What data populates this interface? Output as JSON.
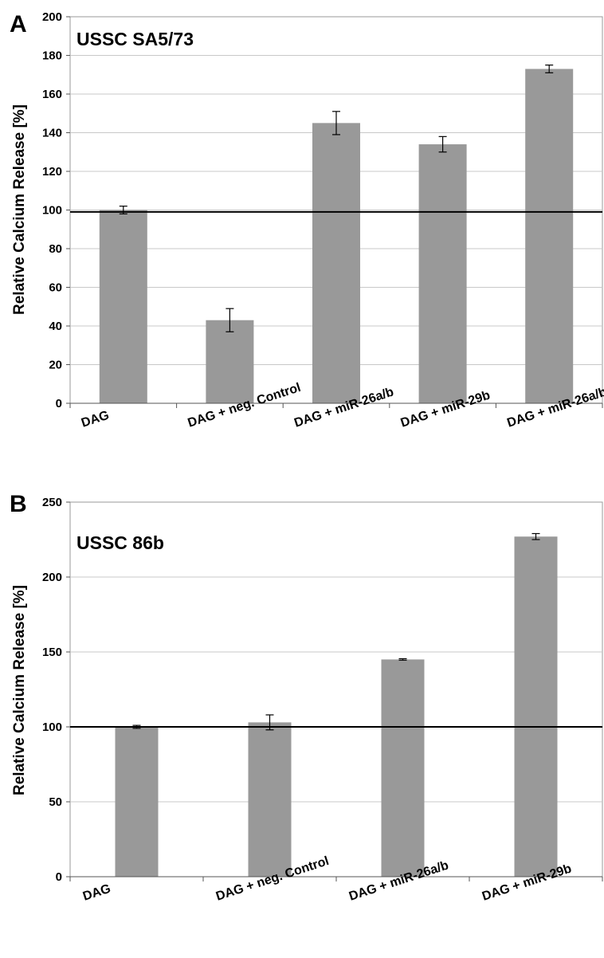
{
  "chart_data": [
    {
      "type": "bar",
      "panel": "A",
      "title": "USSC SA5/73",
      "ylabel": "Relative Calcium Release [%]",
      "xlabel": "",
      "ylim": [
        0,
        200
      ],
      "yticks": [
        "0",
        "20",
        "40",
        "60",
        "80",
        "100",
        "120",
        "140",
        "160",
        "180",
        "200"
      ],
      "categories": [
        "DAG",
        "DAG + neg. Control",
        "DAG + miR-26a/b",
        "DAG + miR-29b",
        "DAG + miR-26a/b/29b"
      ],
      "values": [
        100,
        43,
        145,
        134,
        173
      ],
      "errors": [
        2,
        6,
        6,
        4,
        2
      ],
      "reference_line": 99,
      "grid": true,
      "bar_color": "#999999"
    },
    {
      "type": "bar",
      "panel": "B",
      "title": "USSC 86b",
      "ylabel": "Relative Calcium Release [%]",
      "xlabel": "",
      "ylim": [
        0,
        250
      ],
      "yticks": [
        "0",
        "50",
        "100",
        "150",
        "200",
        "250"
      ],
      "categories": [
        "DAG",
        "DAG + neg. Control",
        "DAG + miR-26a/b",
        "DAG + miR-29b"
      ],
      "values": [
        100,
        103,
        145,
        227
      ],
      "errors": [
        1,
        5,
        0.5,
        2
      ],
      "reference_line": 100,
      "grid": true,
      "bar_color": "#999999"
    }
  ]
}
